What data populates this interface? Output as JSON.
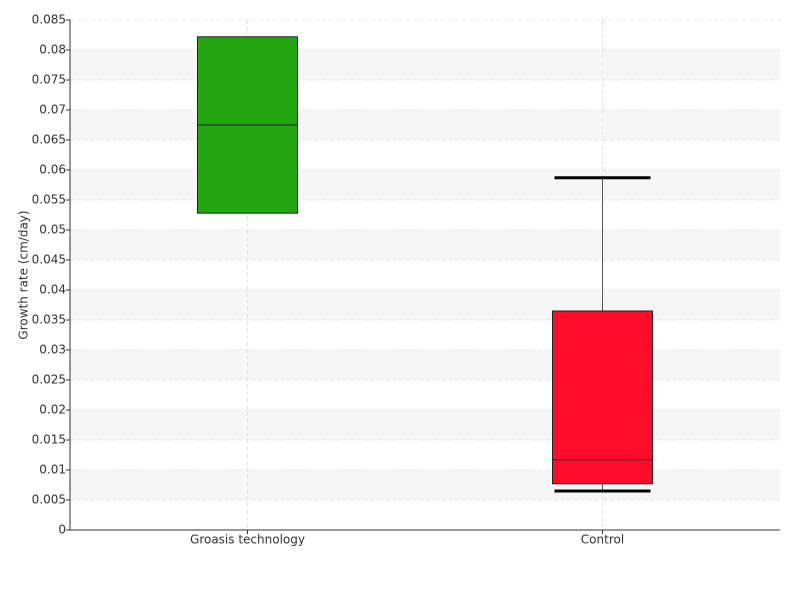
{
  "chart_data": {
    "type": "box",
    "y_label": "Growth rate (cm/day)",
    "categories": [
      "Groasis technology",
      "Control"
    ],
    "boxes": [
      {
        "min": null,
        "q1": 0.0528,
        "median": 0.0675,
        "q3": 0.0822,
        "max": null,
        "color": "#22a511"
      },
      {
        "min": 0.0065,
        "q1": 0.0077,
        "median": 0.0117,
        "q3": 0.0365,
        "max": 0.0587,
        "color": "#ff0c2a"
      }
    ],
    "ylim": [
      0,
      0.085
    ],
    "yticks": [
      0,
      0.005,
      0.01,
      0.015,
      0.02,
      0.025,
      0.03,
      0.035,
      0.04,
      0.045,
      0.05,
      0.055,
      0.06,
      0.065,
      0.07,
      0.075,
      0.08,
      0.085
    ],
    "grid": true
  }
}
